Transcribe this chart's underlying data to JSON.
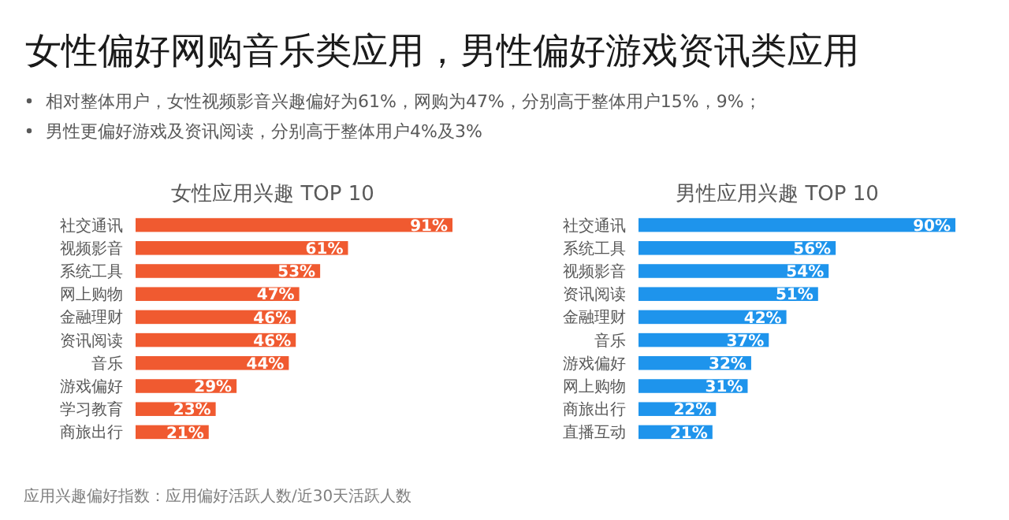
{
  "chart_data": [
    {
      "type": "other",
      "title": "女性偏好网购音乐类应用，男性偏好游戏资讯类应用",
      "annotations": [
        "相对整体用户，女性视频影音兴趣偏好为61%，网购为47%，分别高于整体用户15%，9%；",
        "男性更偏好游戏及资讯阅读，分别高于整体用户4%及3%",
        "应用兴趣偏好指数：应用偏好活跃人数/近30天活跃人数"
      ]
    },
    {
      "type": "bar",
      "orientation": "horizontal",
      "title": "女性应用兴趣 TOP 10",
      "categories": [
        "社交通讯",
        "视频影音",
        "系统工具",
        "网上购物",
        "金融理财",
        "资讯阅读",
        "音乐",
        "游戏偏好",
        "学习教育",
        "商旅出行"
      ],
      "values": [
        91,
        61,
        53,
        47,
        46,
        46,
        44,
        29,
        23,
        21
      ],
      "value_labels": [
        "91%",
        "61%",
        "53%",
        "47%",
        "46%",
        "46%",
        "44%",
        "29%",
        "23%",
        "21%"
      ],
      "color": "#f05a30",
      "tick_labels": "y"
    },
    {
      "type": "bar",
      "orientation": "horizontal",
      "title": "男性应用兴趣 TOP 10",
      "categories": [
        "社交通讯",
        "系统工具",
        "视频影音",
        "资讯阅读",
        "金融理财",
        "音乐",
        "游戏偏好",
        "网上购物",
        "商旅出行",
        "直播互动"
      ],
      "values": [
        90,
        56,
        54,
        51,
        42,
        37,
        32,
        31,
        22,
        21
      ],
      "value_labels": [
        "90%",
        "56%",
        "54%",
        "51%",
        "42%",
        "37%",
        "32%",
        "31%",
        "22%",
        "21%"
      ],
      "color": "#1e94ec",
      "tick_labels": "y"
    }
  ]
}
